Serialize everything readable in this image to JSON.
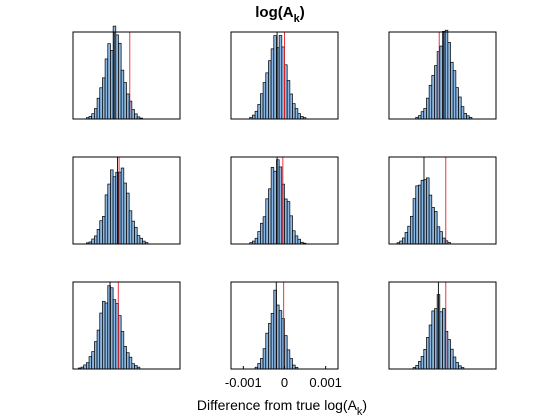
{
  "chart_data": {
    "type": "histogram-grid",
    "title": "log(A",
    "title_subscript": "k",
    "title_suffix": ")",
    "xlabel": "Difference from true log(A",
    "xlabel_subscript": "k",
    "xlabel_suffix": ")",
    "xlim": [
      -0.0013,
      0.0013
    ],
    "xticks": [
      {
        "value": -0.001,
        "label": "-0.001"
      },
      {
        "value": 0,
        "label": "0"
      },
      {
        "value": 0.001,
        "label": "0.001"
      }
    ],
    "xticks_shown_on_panel": 7,
    "grid": false,
    "bar_color": "#8ab7e3",
    "reference_line_color": "#e8202a",
    "mean_line_color": "#000000",
    "panels": [
      {
        "posterior_mean": -0.0003,
        "reference": 8e-05,
        "spread": 0.00022,
        "scale": 1.0
      },
      {
        "posterior_mean": -0.00018,
        "reference": 0.0,
        "spread": 0.00023,
        "scale": 1.0
      },
      {
        "posterior_mean": 3e-05,
        "reference": -8e-05,
        "spread": 0.00023,
        "scale": 1.0
      },
      {
        "posterior_mean": -0.00022,
        "reference": -0.00018,
        "spread": 0.00025,
        "scale": 0.92
      },
      {
        "posterior_mean": -0.00018,
        "reference": -4e-05,
        "spread": 0.00022,
        "scale": 1.0
      },
      {
        "posterior_mean": -0.00045,
        "reference": 8e-05,
        "spread": 0.00022,
        "scale": 0.86
      },
      {
        "posterior_mean": -0.0004,
        "reference": -0.0002,
        "spread": 0.00025,
        "scale": 0.9
      },
      {
        "posterior_mean": -0.0002,
        "reference": -2e-05,
        "spread": 0.00018,
        "scale": 0.9
      },
      {
        "posterior_mean": -0.0001,
        "reference": 8e-05,
        "spread": 0.00021,
        "scale": 0.82
      }
    ]
  }
}
